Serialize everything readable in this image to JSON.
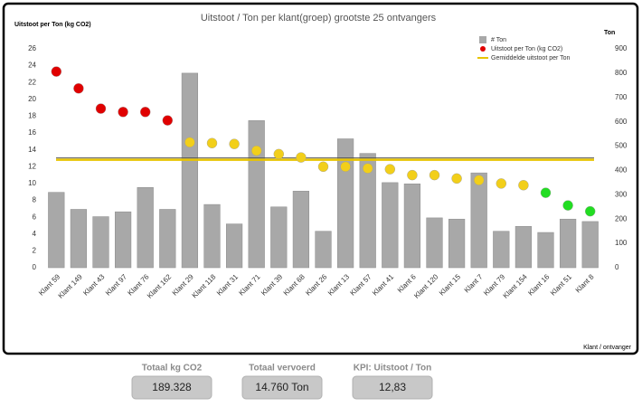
{
  "chart_data": {
    "type": "bar",
    "title": "Uitstoot / Ton per klant(groep) grootste 25 ontvangers",
    "ylabel": "Uitstoot per Ton (kg CO2)",
    "y2label": "Ton",
    "xlabel": "Klant / ontvanger",
    "categories": [
      "Klant 59",
      "Klant 149",
      "Klant 43",
      "Klant 97",
      "Klant 76",
      "Klant 162",
      "Klant 29",
      "Klant 118",
      "Klant 31",
      "Klant 71",
      "Klant 39",
      "Klant 68",
      "Klant 26",
      "Klant 13",
      "Klant 57",
      "Klant 41",
      "Klant 6",
      "Klant 120",
      "Klant 15",
      "Klant 7",
      "Klant 79",
      "Klant 154",
      "Klant 16",
      "Klant 51",
      "Klant 8"
    ],
    "series": [
      {
        "name": "# Ton",
        "type": "bar",
        "axis": "y2",
        "color": "#a8a8a8",
        "values": [
          310,
          240,
          210,
          230,
          330,
          240,
          800,
          260,
          180,
          605,
          250,
          315,
          150,
          530,
          470,
          350,
          345,
          205,
          200,
          390,
          150,
          170,
          145,
          200,
          190
        ]
      },
      {
        "name": "Uitstoot per Ton (kg CO2)",
        "type": "scatter",
        "axis": "y",
        "color": "#e00000",
        "colors": [
          "#e00000",
          "#e00000",
          "#e00000",
          "#e00000",
          "#e00000",
          "#e00000",
          "#f2cf1a",
          "#f2cf1a",
          "#f2cf1a",
          "#f2cf1a",
          "#f2cf1a",
          "#f2cf1a",
          "#f2cf1a",
          "#f2cf1a",
          "#f2cf1a",
          "#f2cf1a",
          "#f2cf1a",
          "#f2cf1a",
          "#f2cf1a",
          "#f2cf1a",
          "#f2cf1a",
          "#f2cf1a",
          "#22dd22",
          "#22dd22",
          "#22dd22"
        ],
        "values": [
          23.3,
          21.3,
          18.9,
          18.5,
          18.5,
          17.5,
          14.9,
          14.8,
          14.7,
          13.9,
          13.5,
          13.1,
          12.0,
          12.0,
          11.8,
          11.7,
          11.0,
          11.0,
          10.6,
          10.4,
          10.0,
          9.8,
          8.9,
          7.4,
          6.7
        ]
      }
    ],
    "average": {
      "name": "Gemiddelde uitstoot per Ton",
      "value": 12.83,
      "color": "#e8c400"
    },
    "ylim": [
      0,
      26
    ],
    "yticks": [
      0,
      2,
      4,
      6,
      8,
      10,
      12,
      14,
      16,
      18,
      20,
      22,
      24,
      26
    ],
    "y2lim": [
      0,
      900
    ],
    "y2ticks": [
      0,
      100,
      200,
      300,
      400,
      500,
      600,
      700,
      800,
      900
    ],
    "legend": "upper right"
  },
  "kpis": [
    {
      "label": "Totaal kg CO2",
      "value": "189.328"
    },
    {
      "label": "Totaal vervoerd",
      "value": "14.760 Ton"
    },
    {
      "label": "KPI: Uitstoot / Ton",
      "value": "12,83"
    }
  ]
}
